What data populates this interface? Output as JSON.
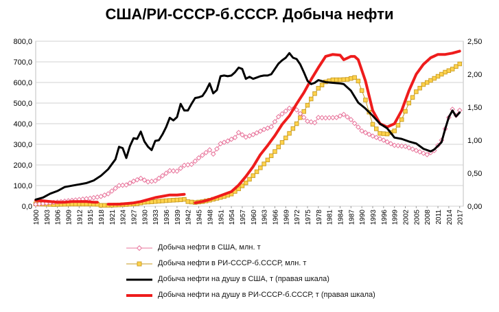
{
  "chart_data": {
    "type": "line",
    "title": "США/РИ-СССР-б.СССР. Добыча нефти",
    "xlabel": "",
    "ylabel": "",
    "y2label": "",
    "ylim": [
      0,
      800
    ],
    "y2lim": [
      0,
      2.5
    ],
    "grid": true,
    "legend_position": "bottom",
    "y_ticks": [
      "0,0",
      "100,0",
      "200,0",
      "300,0",
      "400,0",
      "500,0",
      "600,0",
      "700,0",
      "800,0"
    ],
    "y2_ticks": [
      "0,00",
      "0,50",
      "1,00",
      "1,50",
      "2,00",
      "2,50"
    ],
    "x_ticks": [
      "1900",
      "1903",
      "1906",
      "1909",
      "1912",
      "1915",
      "1918",
      "1921",
      "1924",
      "1927",
      "1930",
      "1933",
      "1936",
      "1939",
      "1942",
      "1945",
      "1948",
      "1951",
      "1954",
      "1957",
      "1960",
      "1963",
      "1966",
      "1969",
      "1972",
      "1975",
      "1978",
      "1981",
      "1984",
      "1987",
      "1990",
      "1993",
      "1996",
      "1999",
      "2002",
      "2005",
      "2008",
      "2011",
      "2014",
      "2017"
    ],
    "series": [
      {
        "name": "Добыча нефти в США, млн. т",
        "axis": "left",
        "color": "#e8749b",
        "marker": "diamond",
        "line_width": 1,
        "points": [
          [
            1900,
            9
          ],
          [
            1905,
            18
          ],
          [
            1910,
            28
          ],
          [
            1915,
            38
          ],
          [
            1918,
            47
          ],
          [
            1920,
            60
          ],
          [
            1923,
            100
          ],
          [
            1925,
            103
          ],
          [
            1927,
            121
          ],
          [
            1929,
            135
          ],
          [
            1931,
            118
          ],
          [
            1933,
            123
          ],
          [
            1937,
            172
          ],
          [
            1939,
            170
          ],
          [
            1941,
            198
          ],
          [
            1943,
            203
          ],
          [
            1945,
            234
          ],
          [
            1948,
            273
          ],
          [
            1949,
            253
          ],
          [
            1951,
            303
          ],
          [
            1953,
            316
          ],
          [
            1955,
            333
          ],
          [
            1956,
            357
          ],
          [
            1958,
            335
          ],
          [
            1960,
            347
          ],
          [
            1963,
            372
          ],
          [
            1965,
            385
          ],
          [
            1967,
            434
          ],
          [
            1970,
            475
          ],
          [
            1972,
            467
          ],
          [
            1975,
            412
          ],
          [
            1977,
            405
          ],
          [
            1978,
            430
          ],
          [
            1980,
            428
          ],
          [
            1983,
            430
          ],
          [
            1985,
            445
          ],
          [
            1987,
            420
          ],
          [
            1990,
            365
          ],
          [
            1993,
            340
          ],
          [
            1996,
            320
          ],
          [
            1999,
            295
          ],
          [
            2002,
            290
          ],
          [
            2005,
            270
          ],
          [
            2008,
            250
          ],
          [
            2010,
            270
          ],
          [
            2012,
            320
          ],
          [
            2014,
            430
          ],
          [
            2015,
            470
          ],
          [
            2016,
            440
          ],
          [
            2017,
            465
          ]
        ]
      },
      {
        "name": "Добыча нефти в РИ-СССР-б.СССР, млн. т",
        "axis": "left",
        "color": "#c79a1f",
        "fill": "#ffd34d",
        "marker": "square",
        "line_width": 1,
        "segments": [
          [
            [
              1900,
              11
            ],
            [
              1905,
              8
            ],
            [
              1910,
              10
            ],
            [
              1915,
              10
            ],
            [
              1917,
              9
            ]
          ],
          [
            [
              1918,
              4
            ],
            [
              1920,
              4
            ],
            [
              1923,
              6
            ],
            [
              1925,
              8
            ],
            [
              1928,
              12
            ],
            [
              1930,
              19
            ],
            [
              1932,
              21
            ],
            [
              1934,
              24
            ],
            [
              1937,
              28
            ],
            [
              1940,
              31
            ],
            [
              1941,
              33
            ],
            [
              1942,
              22
            ],
            [
              1944,
              18
            ],
            [
              1946,
              22
            ],
            [
              1948,
              29
            ],
            [
              1950,
              38
            ],
            [
              1952,
              47
            ],
            [
              1954,
              59
            ],
            [
              1956,
              84
            ],
            [
              1958,
              113
            ],
            [
              1960,
              148
            ],
            [
              1962,
              186
            ],
            [
              1964,
              224
            ],
            [
              1966,
              265
            ],
            [
              1968,
              309
            ],
            [
              1970,
              353
            ],
            [
              1972,
              400
            ],
            [
              1974,
              459
            ],
            [
              1976,
              520
            ],
            [
              1978,
              572
            ],
            [
              1980,
              603
            ],
            [
              1982,
              613
            ],
            [
              1984,
              613
            ],
            [
              1986,
              615
            ],
            [
              1988,
              624
            ],
            [
              1989,
              607
            ],
            [
              1991,
              515
            ],
            [
              1993,
              397
            ],
            [
              1995,
              353
            ],
            [
              1997,
              350
            ],
            [
              1999,
              365
            ],
            [
              2001,
              420
            ],
            [
              2003,
              500
            ],
            [
              2005,
              555
            ],
            [
              2007,
              590
            ],
            [
              2009,
              610
            ],
            [
              2011,
              630
            ],
            [
              2013,
              650
            ],
            [
              2015,
              665
            ],
            [
              2017,
              690
            ]
          ]
        ]
      },
      {
        "name": "Добыча нефти на душу в США, т (правая шкала)",
        "axis": "right",
        "color": "#000000",
        "line_width": 3,
        "points": [
          [
            1900,
            0.1
          ],
          [
            1902,
            0.13
          ],
          [
            1904,
            0.19
          ],
          [
            1906,
            0.23
          ],
          [
            1908,
            0.29
          ],
          [
            1910,
            0.31
          ],
          [
            1912,
            0.33
          ],
          [
            1914,
            0.35
          ],
          [
            1916,
            0.39
          ],
          [
            1918,
            0.46
          ],
          [
            1920,
            0.56
          ],
          [
            1922,
            0.71
          ],
          [
            1923,
            0.9
          ],
          [
            1924,
            0.88
          ],
          [
            1925,
            0.73
          ],
          [
            1926,
            0.91
          ],
          [
            1927,
            1.03
          ],
          [
            1928,
            1.02
          ],
          [
            1929,
            1.13
          ],
          [
            1930,
            0.98
          ],
          [
            1931,
            0.9
          ],
          [
            1932,
            0.85
          ],
          [
            1933,
            0.99
          ],
          [
            1934,
            1.0
          ],
          [
            1935,
            1.09
          ],
          [
            1936,
            1.2
          ],
          [
            1937,
            1.34
          ],
          [
            1938,
            1.3
          ],
          [
            1939,
            1.35
          ],
          [
            1940,
            1.55
          ],
          [
            1941,
            1.45
          ],
          [
            1942,
            1.45
          ],
          [
            1943,
            1.55
          ],
          [
            1944,
            1.64
          ],
          [
            1945,
            1.65
          ],
          [
            1946,
            1.67
          ],
          [
            1947,
            1.75
          ],
          [
            1948,
            1.86
          ],
          [
            1949,
            1.71
          ],
          [
            1950,
            1.76
          ],
          [
            1951,
            1.97
          ],
          [
            1952,
            1.98
          ],
          [
            1953,
            1.97
          ],
          [
            1954,
            1.98
          ],
          [
            1955,
            2.03
          ],
          [
            1956,
            2.1
          ],
          [
            1957,
            2.08
          ],
          [
            1958,
            1.93
          ],
          [
            1959,
            1.96
          ],
          [
            1960,
            1.93
          ],
          [
            1961,
            1.95
          ],
          [
            1962,
            1.97
          ],
          [
            1963,
            1.98
          ],
          [
            1964,
            1.98
          ],
          [
            1965,
            2.0
          ],
          [
            1966,
            2.08
          ],
          [
            1967,
            2.16
          ],
          [
            1968,
            2.21
          ],
          [
            1969,
            2.25
          ],
          [
            1970,
            2.32
          ],
          [
            1971,
            2.25
          ],
          [
            1972,
            2.23
          ],
          [
            1973,
            2.15
          ],
          [
            1974,
            2.03
          ],
          [
            1975,
            1.9
          ],
          [
            1976,
            1.85
          ],
          [
            1977,
            1.87
          ],
          [
            1978,
            1.91
          ],
          [
            1980,
            1.88
          ],
          [
            1982,
            1.87
          ],
          [
            1984,
            1.86
          ],
          [
            1985,
            1.85
          ],
          [
            1987,
            1.75
          ],
          [
            1989,
            1.57
          ],
          [
            1991,
            1.48
          ],
          [
            1993,
            1.37
          ],
          [
            1995,
            1.25
          ],
          [
            1997,
            1.18
          ],
          [
            1999,
            1.04
          ],
          [
            2001,
            1.02
          ],
          [
            2003,
            0.98
          ],
          [
            2005,
            0.95
          ],
          [
            2007,
            0.87
          ],
          [
            2009,
            0.83
          ],
          [
            2010,
            0.86
          ],
          [
            2012,
            0.97
          ],
          [
            2013,
            1.17
          ],
          [
            2014,
            1.35
          ],
          [
            2015,
            1.45
          ],
          [
            2016,
            1.36
          ],
          [
            2017,
            1.42
          ]
        ]
      },
      {
        "name": "Добыча нефти на душу в РИ-СССР-б.СССР, т (правая шкала)",
        "axis": "right",
        "color": "#ee1c1c",
        "line_width": 4,
        "segments": [
          [
            [
              1900,
              0.09
            ],
            [
              1902,
              0.08
            ],
            [
              1904,
              0.07
            ],
            [
              1906,
              0.06
            ],
            [
              1908,
              0.06
            ],
            [
              1910,
              0.07
            ],
            [
              1912,
              0.07
            ],
            [
              1914,
              0.07
            ],
            [
              1916,
              0.06
            ],
            [
              1917,
              0.06
            ]
          ],
          [
            [
              1920,
              0.03
            ],
            [
              1923,
              0.03
            ],
            [
              1925,
              0.04
            ],
            [
              1927,
              0.05
            ],
            [
              1929,
              0.07
            ],
            [
              1931,
              0.1
            ],
            [
              1933,
              0.13
            ],
            [
              1935,
              0.15
            ],
            [
              1937,
              0.17
            ],
            [
              1939,
              0.17
            ],
            [
              1941,
              0.18
            ]
          ],
          [
            [
              1944,
              0.05
            ],
            [
              1946,
              0.07
            ],
            [
              1948,
              0.1
            ],
            [
              1950,
              0.14
            ],
            [
              1952,
              0.18
            ],
            [
              1954,
              0.22
            ],
            [
              1956,
              0.32
            ],
            [
              1958,
              0.45
            ],
            [
              1960,
              0.6
            ],
            [
              1962,
              0.78
            ],
            [
              1964,
              0.92
            ],
            [
              1966,
              1.07
            ],
            [
              1968,
              1.24
            ],
            [
              1970,
              1.37
            ],
            [
              1972,
              1.55
            ],
            [
              1974,
              1.72
            ],
            [
              1976,
              1.92
            ],
            [
              1978,
              2.1
            ],
            [
              1980,
              2.27
            ],
            [
              1982,
              2.3
            ],
            [
              1984,
              2.29
            ],
            [
              1985,
              2.22
            ],
            [
              1987,
              2.27
            ],
            [
              1988,
              2.27
            ],
            [
              1989,
              2.22
            ],
            [
              1991,
              1.9
            ],
            [
              1993,
              1.45
            ],
            [
              1995,
              1.25
            ],
            [
              1997,
              1.2
            ],
            [
              1999,
              1.25
            ],
            [
              2001,
              1.45
            ],
            [
              2003,
              1.75
            ],
            [
              2005,
              2.0
            ],
            [
              2007,
              2.15
            ],
            [
              2009,
              2.25
            ],
            [
              2011,
              2.3
            ],
            [
              2013,
              2.3
            ],
            [
              2015,
              2.32
            ],
            [
              2017,
              2.35
            ]
          ]
        ]
      }
    ]
  }
}
